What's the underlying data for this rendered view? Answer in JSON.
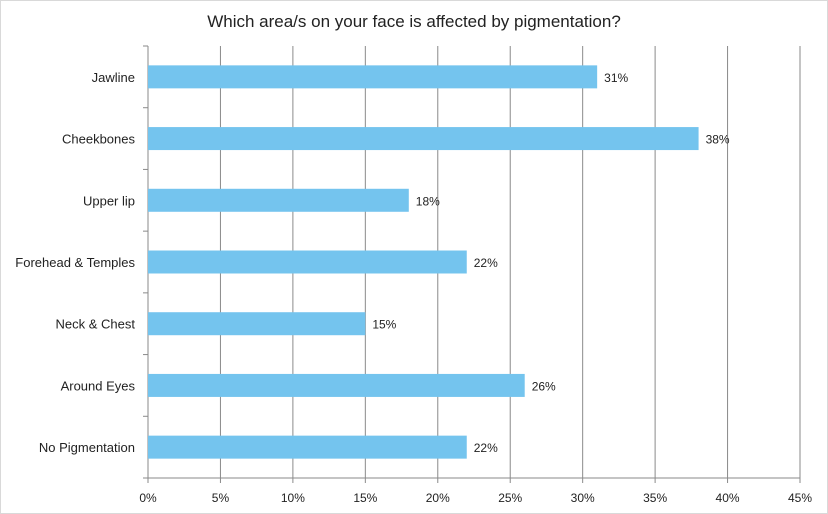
{
  "chart_data": {
    "type": "bar",
    "orientation": "horizontal",
    "title": "Which area/s on your face is affected by pigmentation?",
    "categories": [
      "Jawline",
      "Cheekbones",
      "Upper lip",
      "Forehead & Temples",
      "Neck & Chest",
      "Around Eyes",
      "No Pigmentation"
    ],
    "values": [
      31,
      38,
      18,
      22,
      15,
      26,
      22
    ],
    "data_labels": [
      "31%",
      "38%",
      "18%",
      "22%",
      "15%",
      "26%",
      "22%"
    ],
    "xlim": [
      0,
      45
    ],
    "x_ticks": [
      0,
      5,
      10,
      15,
      20,
      25,
      30,
      35,
      40,
      45
    ],
    "x_tick_labels": [
      "0%",
      "5%",
      "10%",
      "15%",
      "20%",
      "25%",
      "30%",
      "35%",
      "40%",
      "45%"
    ],
    "grid": "vertical",
    "legend": "none",
    "bar_color": "#74c4ee",
    "grid_color": "#8a8a8a"
  }
}
